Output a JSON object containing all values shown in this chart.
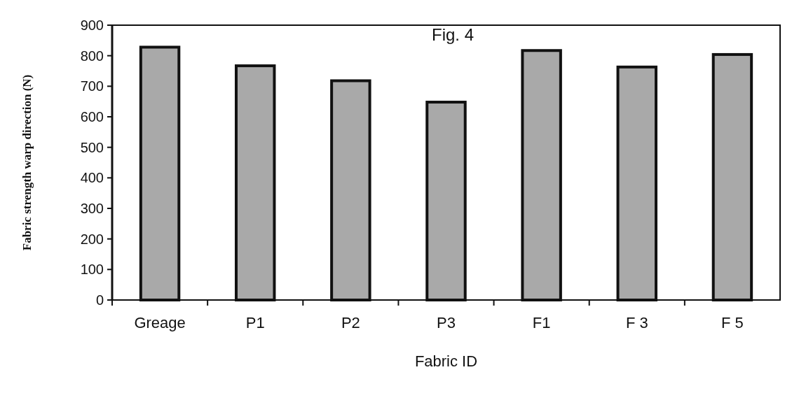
{
  "chart_data": {
    "type": "bar",
    "title": "Fig. 4",
    "xlabel": "Fabric ID",
    "ylabel": "Fabric strength warp direction (N)",
    "categories": [
      "Greage",
      "P1",
      "P2",
      "P3",
      "F1",
      "F 3",
      "F 5"
    ],
    "values": [
      828,
      767,
      718,
      648,
      817,
      763,
      804
    ],
    "color": "#a9a9a9",
    "ylim": [
      0,
      900
    ],
    "yticks": [
      0,
      100,
      200,
      300,
      400,
      500,
      600,
      700,
      800,
      900
    ]
  }
}
